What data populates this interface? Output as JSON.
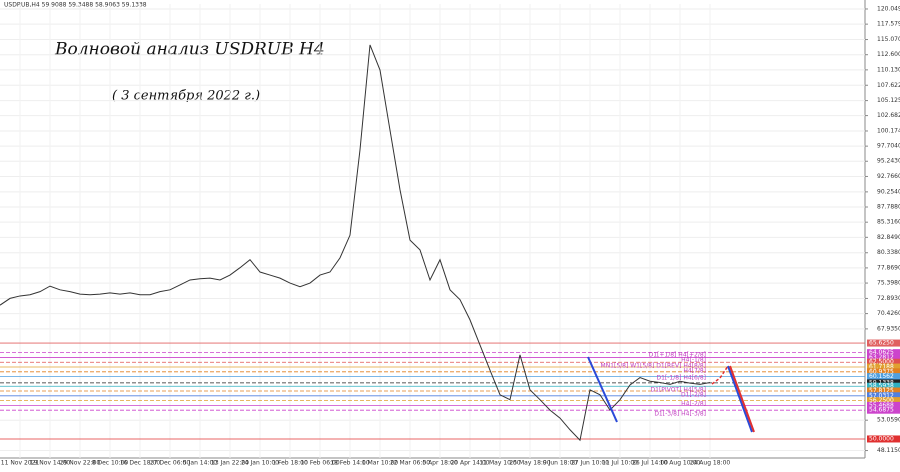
{
  "chart_data": {
    "type": "line",
    "title": "Волновой анализ USDRUB H4",
    "subtitle": "( 3 сентября 2022 г.)",
    "header": "USDRUB,H4  59.9088 59.3488 58.9063 59.1338",
    "categories": [
      null,
      null,
      "11 Nov 2021",
      null,
      null,
      "19 Nov 14:00",
      null,
      null,
      "29 Nov 22:00",
      null,
      null,
      "8 Dec 10:00",
      null,
      null,
      "16 Dec 18:00",
      null,
      null,
      "27 Dec 06:00",
      null,
      null,
      "5 Jan 14:00",
      null,
      null,
      "13 Jan 22:00",
      null,
      null,
      "24 Jan 10:00",
      null,
      null,
      "1 Feb 18:00",
      null,
      null,
      "10 Feb 06:00",
      null,
      null,
      "18 Feb 14:00",
      null,
      null,
      "1 Mar 10:00",
      null,
      null,
      "22 Mar 06:00",
      null,
      null,
      "5 Apr 18:00",
      null,
      null,
      "20 Apr 14:00",
      null,
      null,
      "11 May 10:00",
      null,
      null,
      "25 May 18:00",
      null,
      null,
      "9 Jun 18:00",
      null,
      null,
      "27 Jun 10:00",
      null,
      null,
      "11 Jul 10:00",
      null,
      null,
      "26 Jul 14:00",
      null,
      null,
      "10 Aug 10:00",
      null,
      null,
      "24 Aug 18:00"
    ],
    "series": [
      {
        "name": "USDRUB",
        "color": "#333333",
        "values": [
          71.8,
          72.9,
          73.3,
          73.5,
          74.0,
          74.9,
          74.3,
          74.0,
          73.6,
          73.5,
          73.6,
          73.8,
          73.6,
          73.8,
          73.5,
          73.5,
          74.0,
          74.3,
          75.1,
          75.9,
          76.1,
          76.2,
          75.9,
          76.7,
          77.9,
          79.2,
          77.2,
          76.7,
          76.2,
          75.4,
          74.8,
          75.4,
          76.7,
          77.2,
          79.5,
          83.2,
          97.1,
          114.2,
          110.1,
          100.3,
          90.6,
          82.4,
          80.8,
          75.9,
          79.2,
          74.3,
          72.7,
          69.4,
          65.3,
          61.2,
          57.2,
          56.4,
          63.7,
          58.0,
          56.4,
          54.7,
          53.4,
          51.5,
          49.8,
          58.0,
          57.2,
          54.7,
          56.4,
          58.8,
          60.0,
          59.4,
          59.2,
          58.9,
          59.4,
          59.1,
          58.9,
          59.2
        ]
      }
    ],
    "ylim": [
      46.9,
      120.86
    ],
    "yticks": [
      {
        "value": 120.049,
        "label": "120.0490"
      },
      {
        "value": 117.579,
        "label": "117.5790"
      },
      {
        "value": 115.07,
        "label": "115.0700"
      },
      {
        "value": 112.6,
        "label": "112.6000"
      },
      {
        "value": 110.13,
        "label": "110.1300"
      },
      {
        "value": 107.622,
        "label": "107.6220"
      },
      {
        "value": 105.125,
        "label": "105.1250"
      },
      {
        "value": 102.682,
        "label": "102.6820"
      },
      {
        "value": 100.174,
        "label": "100.1740"
      },
      {
        "value": 97.704,
        "label": "97.7040"
      },
      {
        "value": 95.243,
        "label": "95.2430"
      },
      {
        "value": 92.766,
        "label": "92.7660"
      },
      {
        "value": 90.254,
        "label": "90.2540"
      },
      {
        "value": 87.788,
        "label": "87.7880"
      },
      {
        "value": 85.316,
        "label": "85.3160"
      },
      {
        "value": 82.849,
        "label": "82.8490"
      },
      {
        "value": 80.338,
        "label": "80.3380"
      },
      {
        "value": 77.869,
        "label": "77.8690"
      },
      {
        "value": 75.398,
        "label": "75.3980"
      },
      {
        "value": 72.893,
        "label": "72.8930"
      },
      {
        "value": 70.426,
        "label": "70.4260"
      },
      {
        "value": 67.935,
        "label": "67.9350"
      },
      {
        "value": 53.059,
        "label": "53.0590"
      },
      {
        "value": 48.115,
        "label": "48.1150"
      }
    ],
    "grid": true,
    "levels": [
      {
        "value": 65.625,
        "label": "65.6250",
        "color": "#e06060"
      },
      {
        "value": 64.0625,
        "label": "64.0625",
        "color": "#cc44cc"
      },
      {
        "value": 63.2812,
        "label": "63.2812",
        "color": "#cc44cc"
      },
      {
        "value": 62.5,
        "label": "62.5000",
        "color": "#e05050"
      },
      {
        "value": 61.7188,
        "label": "61.7188",
        "color": "#e0a030"
      },
      {
        "value": 60.9375,
        "label": "60.9375",
        "color": "#e08020"
      },
      {
        "value": 60.1562,
        "label": "60.1562",
        "color": "#50a0e0"
      },
      {
        "value": 59.1338,
        "label": "59.1338",
        "color": "#222222"
      },
      {
        "value": 58.5938,
        "label": "58.5938",
        "color": "#30b0c0"
      },
      {
        "value": 57.8125,
        "label": "57.8125",
        "color": "#e08020"
      },
      {
        "value": 57.0312,
        "label": "57.0312",
        "color": "#5080e0"
      },
      {
        "value": 56.25,
        "label": "56.2500",
        "color": "#e0a030"
      },
      {
        "value": 55.4688,
        "label": "55.4688",
        "color": "#cc44cc"
      },
      {
        "value": 54.6875,
        "label": "54.6875",
        "color": "#cc44cc"
      },
      {
        "value": 50,
        "label": "50.0000",
        "color": "#e03030"
      }
    ],
    "level_notes": [
      "D1[+1/8] H4[+2/8]",
      "H4[-1/8]",
      "MN1[5/8] W1[5/8] D1[REV] H4[8/8]",
      "H4[7/8]",
      "D1[-1/8] H4[6/8]",
      "D1[PIVOT] H4[5/8]",
      "D1[-2/8]",
      "H4[-2/8]",
      "D1[-3/8] H4[-3/8]"
    ]
  }
}
